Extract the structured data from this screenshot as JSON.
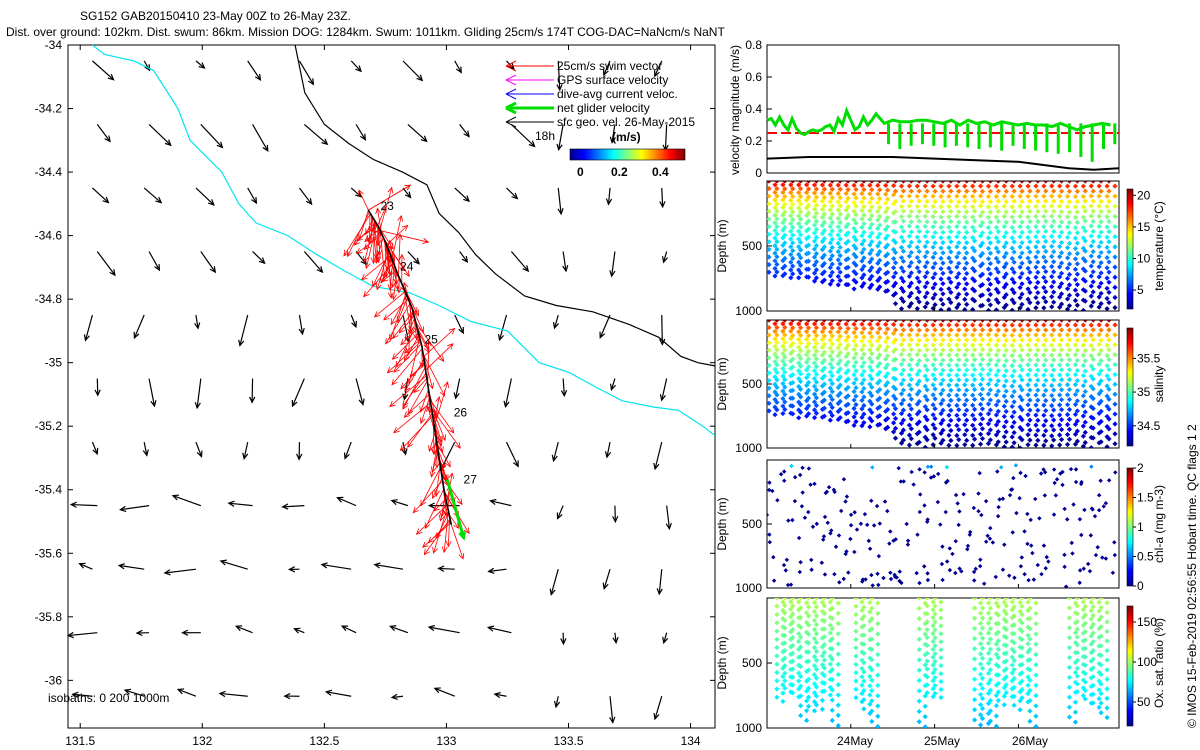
{
  "header": {
    "line1": "SG152 GAB20150410 23-May 00Z to 26-May 23Z.",
    "line2": "Dist. over ground: 102km. Dist. swum: 86km. Mission DOG: 1284km. Swum: 1011km. Gliding 25cm/s 174T COG-DAC=NaNcm/s NaNT"
  },
  "colors": {
    "swim": "#ff0000",
    "gps": "#ff00ff",
    "dac": "#0000ff",
    "net": "#00dd00",
    "geo": "#000000",
    "isobath_coast": "#000000",
    "isobath_200": "#00e5ee",
    "track": "#000000",
    "threshold": "#ff0000"
  },
  "legend": {
    "items": [
      "25cm/s swim vector",
      "GPS surface velocity",
      "dive-avg current veloc.",
      "net glider velocity",
      "sfc geo. vel. 26-May-2015"
    ],
    "time_label": "18h",
    "cbar_title": "(m/s)",
    "cbar_ticks": [
      "0",
      "0.2",
      "0.4"
    ]
  },
  "isobath_label": "isobaths: 0   200  1000m",
  "copyright": "© IMOS 15-Feb-2019 02:56:55 Hobart time. QC flags 1  2",
  "chart_data": [
    {
      "type": "map",
      "name": "glider-track-map",
      "xlim": [
        131.45,
        134.1
      ],
      "ylim": [
        -36.15,
        -34.0
      ],
      "xticks": [
        131.5,
        132,
        132.5,
        133,
        133.5,
        134
      ],
      "xtick_labels": [
        "131.5",
        "132",
        "132.5",
        "133",
        "133.5",
        "134"
      ],
      "yticks": [
        -34,
        -34.2,
        -34.4,
        -34.6,
        -34.8,
        -35,
        -35.2,
        -35.4,
        -35.6,
        -35.8,
        -36
      ],
      "ytick_labels": [
        "-34",
        "-34.2",
        "-34.4",
        "-34.6",
        "-34.8",
        "-35",
        "-35.2",
        "-35.4",
        "-35.6",
        "-35.8",
        "-36"
      ],
      "isobath_0": [
        [
          132.38,
          -34.0
        ],
        [
          132.42,
          -34.15
        ],
        [
          132.5,
          -34.25
        ],
        [
          132.6,
          -34.31
        ],
        [
          132.7,
          -34.36
        ],
        [
          132.82,
          -34.4
        ],
        [
          132.92,
          -34.44
        ],
        [
          132.97,
          -34.53
        ],
        [
          133.05,
          -34.59
        ],
        [
          133.12,
          -34.66
        ],
        [
          133.2,
          -34.72
        ],
        [
          133.32,
          -34.79
        ],
        [
          133.45,
          -34.82
        ],
        [
          133.6,
          -34.84
        ],
        [
          133.75,
          -34.88
        ],
        [
          133.87,
          -34.92
        ],
        [
          133.96,
          -34.98
        ],
        [
          134.03,
          -35.0
        ],
        [
          134.1,
          -35.01
        ]
      ],
      "isobath_200": [
        [
          131.55,
          -34.0
        ],
        [
          131.6,
          -34.03
        ],
        [
          131.72,
          -34.05
        ],
        [
          131.8,
          -34.08
        ],
        [
          131.9,
          -34.2
        ],
        [
          131.95,
          -34.3
        ],
        [
          132.08,
          -34.4
        ],
        [
          132.15,
          -34.5
        ],
        [
          132.22,
          -34.56
        ],
        [
          132.35,
          -34.6
        ],
        [
          132.47,
          -34.66
        ],
        [
          132.58,
          -34.71
        ],
        [
          132.7,
          -34.76
        ],
        [
          132.85,
          -34.78
        ],
        [
          132.97,
          -34.82
        ],
        [
          133.1,
          -34.87
        ],
        [
          133.25,
          -34.9
        ],
        [
          133.38,
          -35.0
        ],
        [
          133.5,
          -35.03
        ],
        [
          133.62,
          -35.08
        ],
        [
          133.72,
          -35.12
        ],
        [
          133.85,
          -35.14
        ],
        [
          133.95,
          -35.15
        ],
        [
          134.05,
          -35.2
        ],
        [
          134.1,
          -35.23
        ]
      ],
      "track": [
        [
          132.68,
          -34.52
        ],
        [
          132.72,
          -34.57
        ],
        [
          132.75,
          -34.62
        ],
        [
          132.8,
          -34.72
        ],
        [
          132.86,
          -34.83
        ],
        [
          132.9,
          -34.95
        ],
        [
          132.93,
          -35.1
        ],
        [
          132.96,
          -35.25
        ],
        [
          132.99,
          -35.4
        ],
        [
          133.02,
          -35.51
        ]
      ],
      "track_labels": [
        {
          "lon": 132.73,
          "lat": -34.52,
          "text": "23"
        },
        {
          "lon": 132.81,
          "lat": -34.71,
          "text": "24"
        },
        {
          "lon": 132.91,
          "lat": -34.94,
          "text": "25"
        },
        {
          "lon": 133.03,
          "lat": -35.17,
          "text": "26"
        },
        {
          "lon": 133.07,
          "lat": -35.38,
          "text": "27"
        }
      ],
      "net_velocity_end": [
        133.07,
        -35.55
      ],
      "geo_grid": {
        "lon0": 131.55,
        "dlon": 0.212,
        "nlon": 13,
        "lat0": -34.05,
        "dlat": -0.2,
        "nlat": 11,
        "scale": 0.3
      }
    },
    {
      "type": "line",
      "name": "velocity-magnitude",
      "ylabel": "velocity magnitude (m/s)",
      "xlim": [
        0,
        4.2
      ],
      "ylim": [
        0,
        0.8
      ],
      "yticks": [
        0,
        0.2,
        0.4,
        0.6,
        0.8
      ],
      "ytick_labels": [
        "0",
        "0.2",
        "0.4",
        "0.6",
        "0.8"
      ],
      "threshold": 0.25,
      "net": {
        "t": [
          0,
          0.05,
          0.1,
          0.15,
          0.2,
          0.25,
          0.3,
          0.35,
          0.4,
          0.45,
          0.5,
          0.55,
          0.6,
          0.65,
          0.7,
          0.75,
          0.8,
          0.85,
          0.9,
          0.95,
          1.0,
          1.05,
          1.1,
          1.15,
          1.2,
          1.25,
          1.3,
          1.4,
          1.5,
          1.6,
          1.7,
          1.8,
          1.9,
          2.0,
          2.1,
          2.2,
          2.3,
          2.4,
          2.5,
          2.6,
          2.7,
          2.8,
          2.9,
          3.0,
          3.1,
          3.2,
          3.3,
          3.4,
          3.5,
          3.6,
          3.7,
          3.8,
          3.9,
          4.0,
          4.1
        ],
        "v": [
          0.33,
          0.34,
          0.3,
          0.35,
          0.3,
          0.27,
          0.34,
          0.28,
          0.25,
          0.24,
          0.26,
          0.27,
          0.26,
          0.27,
          0.29,
          0.3,
          0.26,
          0.34,
          0.3,
          0.39,
          0.33,
          0.27,
          0.29,
          0.35,
          0.3,
          0.33,
          0.37,
          0.31,
          0.33,
          0.32,
          0.32,
          0.33,
          0.33,
          0.32,
          0.31,
          0.33,
          0.3,
          0.33,
          0.31,
          0.32,
          0.3,
          0.32,
          0.31,
          0.3,
          0.31,
          0.3,
          0.3,
          0.29,
          0.31,
          0.29,
          0.27,
          0.29,
          0.3,
          0.31,
          0.3
        ],
        "spikes_down": [
          0.18,
          0.15,
          0.17,
          0.18,
          0.17,
          0.16,
          0.17,
          0.16,
          0.15,
          0.16,
          0.14,
          0.17,
          0.15,
          0.14,
          0.13,
          0.12,
          0.13,
          0.1,
          0.07,
          0.15,
          0.18
        ]
      },
      "geo_speed": {
        "t": [
          0,
          0.5,
          1.0,
          1.5,
          2.0,
          2.5,
          3.0,
          3.3,
          3.6,
          3.9,
          4.2
        ],
        "v": [
          0.09,
          0.1,
          0.1,
          0.1,
          0.09,
          0.08,
          0.07,
          0.05,
          0.03,
          0.02,
          0.03
        ]
      }
    },
    {
      "type": "scatter",
      "name": "temperature-section",
      "ylabel": "Depth (m)",
      "cbar_label": "temperature (°C)",
      "cbar_range": [
        2,
        21
      ],
      "cbar_ticks": [
        "5",
        "10",
        "15",
        "20"
      ],
      "ylim": [
        0,
        1000
      ],
      "yticks": [
        "500",
        "1000"
      ],
      "colormap": "jet"
    },
    {
      "type": "scatter",
      "name": "salinity-section",
      "ylabel": "Depth (m)",
      "cbar_label": "salinity",
      "cbar_range": [
        34.2,
        35.95
      ],
      "cbar_ticks": [
        "34.5",
        "35",
        "35.5"
      ],
      "ylim": [
        0,
        1000
      ],
      "yticks": [
        "500",
        "1000"
      ],
      "colormap": "jet"
    },
    {
      "type": "scatter",
      "name": "chla-section",
      "ylabel": "Depth (m)",
      "cbar_label": "chl-a (mg m-3)",
      "cbar_range": [
        0,
        2
      ],
      "cbar_ticks": [
        "0",
        "0.5",
        "1",
        "1.5",
        "2"
      ],
      "ylim": [
        0,
        1000
      ],
      "yticks": [
        "500",
        "1000"
      ],
      "colormap": "jet"
    },
    {
      "type": "scatter",
      "name": "oxygen-section",
      "ylabel": "Depth (m)",
      "cbar_label": "Ox. sat. ratio (%)",
      "cbar_range": [
        20,
        170
      ],
      "cbar_ticks": [
        "50",
        "100",
        "150"
      ],
      "ylim": [
        0,
        1000
      ],
      "yticks": [
        "500",
        "1000"
      ],
      "xticks": [
        1,
        2,
        3
      ],
      "xtick_labels": [
        "24May",
        "25May",
        "26May"
      ],
      "colormap": "jet"
    }
  ]
}
